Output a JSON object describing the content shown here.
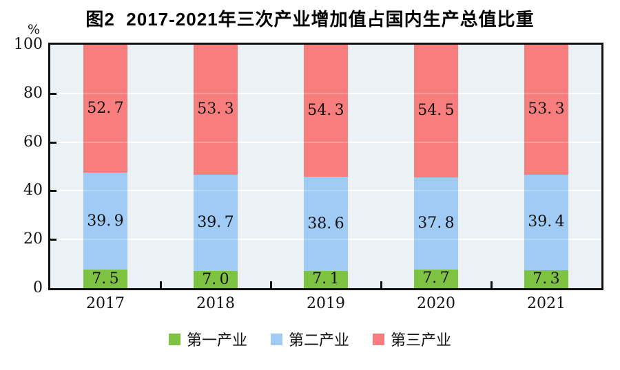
{
  "title": "图2  2017-2021年三次产业增加值占国内生产总值比重",
  "y_axis": {
    "unit_label": "%",
    "tick_values": [
      0,
      20,
      40,
      60,
      80,
      100
    ],
    "gridline_values": [
      20,
      40,
      60,
      80
    ]
  },
  "chart_data": {
    "type": "bar",
    "stacked": true,
    "title": "图2 2017-2021年三次产业增加值占国内生产总值比重",
    "categories": [
      "2017",
      "2018",
      "2019",
      "2020",
      "2021"
    ],
    "series": [
      {
        "name": "第一产业",
        "color": "#7EC242",
        "values": [
          7.5,
          7.0,
          7.1,
          7.7,
          7.3
        ]
      },
      {
        "name": "第二产业",
        "color": "#9FCBF5",
        "values": [
          39.9,
          39.7,
          38.6,
          37.8,
          39.4
        ]
      },
      {
        "name": "第三产业",
        "color": "#F87E7E",
        "values": [
          52.7,
          53.3,
          54.3,
          54.5,
          53.3
        ]
      }
    ],
    "ylim": [
      0,
      100
    ],
    "ylabel": "%",
    "grid": "horizontal",
    "legend_position": "bottom",
    "value_label_decimals": 1
  },
  "colors": {
    "plot_background": "#EBF1F4",
    "frame": "#111111",
    "gridline_back": "rgba(255,255,255,0.92)",
    "gridline_front": "rgba(255,255,255,0.22)",
    "tick": "#111111",
    "label_text": "#111111"
  }
}
